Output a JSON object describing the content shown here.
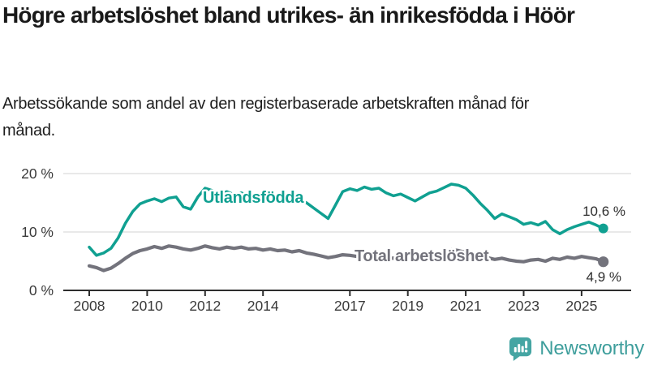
{
  "header": {
    "title": "Högre arbetslöshet bland utrikes- än inrikesfödda i Höör",
    "subtitle": "Arbetssökande som andel av den registerbaserade arbetskraften månad för månad."
  },
  "chart_data": {
    "type": "line",
    "title": "Högre arbetslöshet bland utrikes- än inrikesfödda i Höör",
    "subtitle": "Arbetssökande som andel av den registerbaserade arbetskraften månad för månad.",
    "unit": "%",
    "x_start": 2008,
    "x_step_years": 0.25,
    "x_ticks": [
      2008,
      2010,
      2012,
      2014,
      2017,
      2019,
      2021,
      2023,
      2025
    ],
    "y_ticks": [
      {
        "value": 0,
        "label": "0 %"
      },
      {
        "value": 10,
        "label": "10 %"
      },
      {
        "value": 20,
        "label": "20 %"
      }
    ],
    "ylim": [
      0,
      21
    ],
    "grid": "horizontal",
    "legend": "inline-labels",
    "colors": {
      "grid": "#dcdcdc",
      "axis": "#2e2e2e",
      "axis_text": "#3a3a3a",
      "value_text": "#2e2e2e"
    },
    "series": [
      {
        "id": "utlandsfodda",
        "name": "Utlandsfödda",
        "color": "#10A091",
        "end_label": "10,6 %",
        "final_value": 10.6,
        "values": [
          7.4,
          6.0,
          6.4,
          7.2,
          9.0,
          11.5,
          13.5,
          14.8,
          15.3,
          15.7,
          15.2,
          15.8,
          16.0,
          14.3,
          13.9,
          16.0,
          17.5,
          17.1,
          16.6,
          16.9,
          16.4,
          16.7,
          16.2,
          16.4,
          15.9,
          16.2,
          15.7,
          15.9,
          15.4,
          15.6,
          15.0,
          14.1,
          13.2,
          12.3,
          14.6,
          16.9,
          17.4,
          17.1,
          17.7,
          17.3,
          17.5,
          16.7,
          16.2,
          16.5,
          15.9,
          15.3,
          16.0,
          16.7,
          17.0,
          17.6,
          18.2,
          18.0,
          17.5,
          16.3,
          14.9,
          13.7,
          12.3,
          13.1,
          12.6,
          12.1,
          11.3,
          11.6,
          11.2,
          11.8,
          10.4,
          9.7,
          10.4,
          10.9,
          11.3,
          11.7,
          11.2,
          10.6
        ]
      },
      {
        "id": "total",
        "name": "Total arbetslöshet",
        "color": "#73737C",
        "end_label": "4,9 %",
        "final_value": 4.9,
        "values": [
          4.2,
          3.9,
          3.4,
          3.8,
          4.6,
          5.5,
          6.3,
          6.8,
          7.1,
          7.5,
          7.2,
          7.6,
          7.4,
          7.1,
          6.9,
          7.2,
          7.6,
          7.3,
          7.1,
          7.4,
          7.2,
          7.4,
          7.1,
          7.2,
          6.9,
          7.1,
          6.8,
          6.9,
          6.6,
          6.8,
          6.4,
          6.2,
          5.9,
          5.6,
          5.8,
          6.1,
          6.0,
          5.8,
          5.9,
          5.7,
          5.8,
          5.6,
          5.5,
          5.7,
          5.5,
          5.4,
          5.6,
          5.8,
          6.0,
          6.7,
          7.0,
          6.8,
          6.5,
          6.2,
          5.9,
          5.6,
          5.3,
          5.5,
          5.2,
          5.0,
          4.9,
          5.2,
          5.3,
          5.0,
          5.5,
          5.3,
          5.7,
          5.5,
          5.8,
          5.6,
          5.4,
          4.9
        ]
      }
    ]
  },
  "footer": {
    "brand": "Newsworthy",
    "brand_color": "#3E9E9C",
    "icon_color": "#45A5A3"
  }
}
